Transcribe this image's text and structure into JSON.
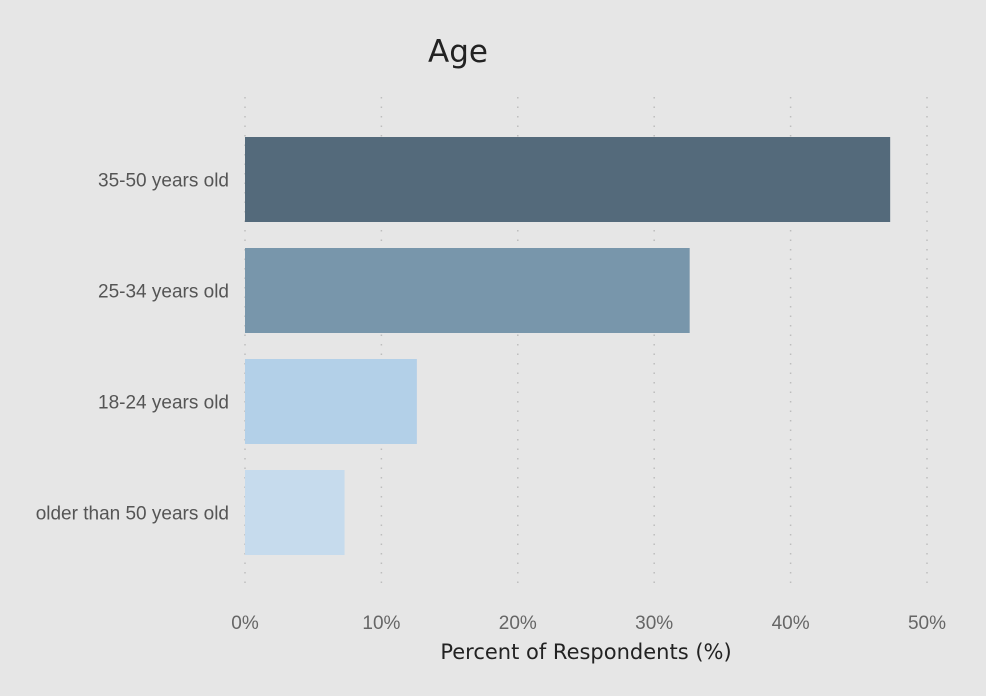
{
  "chart_data": {
    "type": "bar",
    "orientation": "horizontal",
    "title": "Age",
    "xlabel": "Percent of Respondents (%)",
    "ylabel": "",
    "categories": [
      "35-50 years old",
      "25-34 years old",
      "18-24 years old",
      "older than 50 years old"
    ],
    "values": [
      47.3,
      32.6,
      12.6,
      7.3
    ],
    "bar_colors": [
      "#546a7b",
      "#7896ab",
      "#b3d0e8",
      "#c6dbed"
    ],
    "xlim": [
      0,
      50
    ],
    "x_ticks": [
      0,
      10,
      20,
      30,
      40,
      50
    ],
    "x_tick_labels": [
      "0%",
      "10%",
      "20%",
      "30%",
      "40%",
      "50%"
    ],
    "grid": "vertical dotted",
    "legend": "none",
    "background": "#e6e6e6"
  }
}
